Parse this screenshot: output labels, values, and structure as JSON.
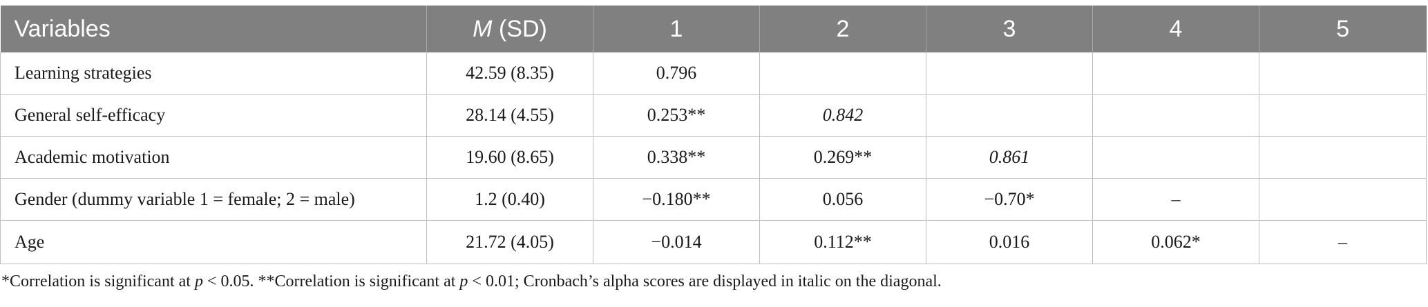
{
  "table": {
    "headers": {
      "variables": "Variables",
      "m_letter": "M",
      "sd_part": " (SD)",
      "c1": "1",
      "c2": "2",
      "c3": "3",
      "c4": "4",
      "c5": "5"
    },
    "rows": [
      {
        "label": "Learning strategies",
        "msd": "42.59 (8.35)",
        "c1": "0.796",
        "c2": "",
        "c3": "",
        "c4": "",
        "c5": ""
      },
      {
        "label": "General self-efficacy",
        "msd": "28.14 (4.55)",
        "c1": "0.253**",
        "c2": "0.842",
        "c3": "",
        "c4": "",
        "c5": ""
      },
      {
        "label": "Academic motivation",
        "msd": "19.60 (8.65)",
        "c1": "0.338**",
        "c2": "0.269**",
        "c3": "0.861",
        "c4": "",
        "c5": ""
      },
      {
        "label": "Gender (dummy variable 1 = female; 2 = male)",
        "msd": "1.2 (0.40)",
        "c1": "−0.180**",
        "c2": "0.056",
        "c3": "−0.70*",
        "c4": "–",
        "c5": ""
      },
      {
        "label": "Age",
        "msd": "21.72 (4.05)",
        "c1": "−0.014",
        "c2": "0.112**",
        "c3": "0.016",
        "c4": "0.062*",
        "c5": "–"
      }
    ]
  },
  "footnote": {
    "part1": "*Correlation is significant at ",
    "p1": "p",
    "part2": " < 0.05. **Correlation is significant at ",
    "p2": "p",
    "part3": " < 0.01; Cronbach’s alpha scores are displayed in italic on the diagonal."
  }
}
